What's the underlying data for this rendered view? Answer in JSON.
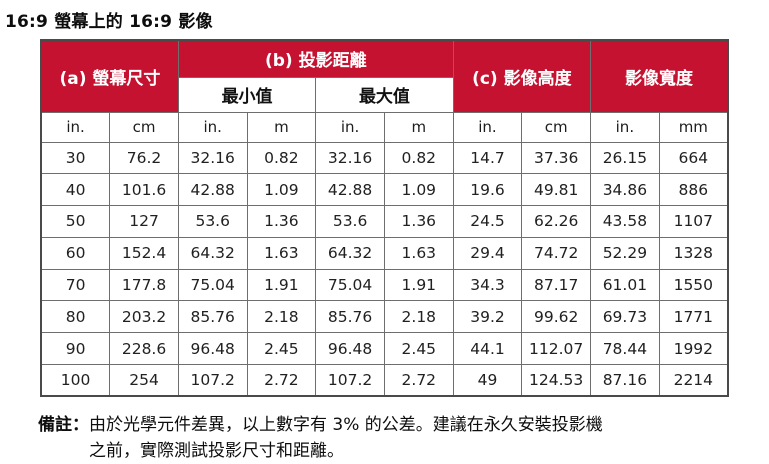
{
  "title": "16:9 螢幕上的 16:9 影像",
  "colors": {
    "header_red": "#C41230",
    "header_text": "#ffffff",
    "border_outer": "#4a4a4a",
    "border_inner": "#6e6e6e",
    "body_text": "#212121"
  },
  "table": {
    "header": {
      "screen_size": "(a) 螢幕尺寸",
      "projection_distance": "(b) 投影距離",
      "min": "最小值",
      "max": "最大值",
      "image_height": "(c) 影像高度",
      "image_width": "影像寬度"
    },
    "units": [
      "in.",
      "cm",
      "in.",
      "m",
      "in.",
      "m",
      "in.",
      "cm",
      "in.",
      "mm"
    ],
    "rows": [
      [
        "30",
        "76.2",
        "32.16",
        "0.82",
        "32.16",
        "0.82",
        "14.7",
        "37.36",
        "26.15",
        "664"
      ],
      [
        "40",
        "101.6",
        "42.88",
        "1.09",
        "42.88",
        "1.09",
        "19.6",
        "49.81",
        "34.86",
        "886"
      ],
      [
        "50",
        "127",
        "53.6",
        "1.36",
        "53.6",
        "1.36",
        "24.5",
        "62.26",
        "43.58",
        "1107"
      ],
      [
        "60",
        "152.4",
        "64.32",
        "1.63",
        "64.32",
        "1.63",
        "29.4",
        "74.72",
        "52.29",
        "1328"
      ],
      [
        "70",
        "177.8",
        "75.04",
        "1.91",
        "75.04",
        "1.91",
        "34.3",
        "87.17",
        "61.01",
        "1550"
      ],
      [
        "80",
        "203.2",
        "85.76",
        "2.18",
        "85.76",
        "2.18",
        "39.2",
        "99.62",
        "69.73",
        "1771"
      ],
      [
        "90",
        "228.6",
        "96.48",
        "2.45",
        "96.48",
        "2.45",
        "44.1",
        "112.07",
        "78.44",
        "1992"
      ],
      [
        "100",
        "254",
        "107.2",
        "2.72",
        "107.2",
        "2.72",
        "49",
        "124.53",
        "87.16",
        "2214"
      ]
    ]
  },
  "note": {
    "label": "備註：",
    "line1": "由於光學元件差異，以上數字有 3% 的公差。建議在永久安裝投影機",
    "line2": "之前，實際測試投影尺寸和距離。"
  }
}
